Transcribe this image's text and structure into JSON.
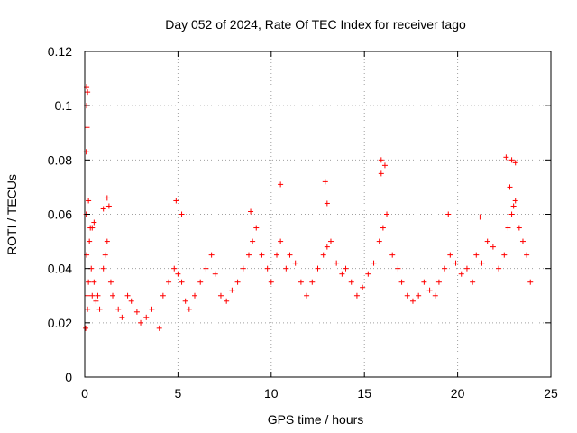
{
  "chart_data": {
    "type": "scatter",
    "title": "Day 052 of 2024, Rate Of TEC Index for receiver tago",
    "xlabel": "GPS time / hours",
    "ylabel": "ROTI / TECUs",
    "xlim": [
      0,
      25
    ],
    "ylim": [
      0,
      0.12
    ],
    "x_ticks": [
      0,
      5,
      10,
      15,
      20,
      25
    ],
    "x_tick_labels": [
      "0",
      "5",
      "10",
      "15",
      "20",
      "25"
    ],
    "y_ticks": [
      0,
      0.02,
      0.04,
      0.06,
      0.08,
      0.1,
      0.12
    ],
    "y_tick_labels": [
      "0",
      "0.02",
      "0.04",
      "0.06",
      "0.08",
      "0.1",
      "0.12"
    ],
    "grid": true,
    "marker": "+",
    "series": [
      {
        "name": "ROTI",
        "color": "#ff0000",
        "x": [
          0.05,
          0.08,
          0.1,
          0.12,
          0.15,
          0.2,
          0.25,
          0.3,
          0.35,
          0.4,
          0.5,
          0.6,
          0.7,
          0.8,
          1.0,
          1.1,
          1.2,
          1.4,
          1.5,
          1.8,
          2.0,
          2.3,
          2.5,
          2.8,
          3.0,
          3.3,
          3.6,
          4.0,
          4.2,
          4.5,
          4.8,
          5.0,
          5.2,
          5.4,
          5.6,
          5.9,
          6.2,
          6.5,
          6.8,
          7.0,
          7.3,
          7.6,
          7.9,
          8.2,
          8.5,
          8.8,
          9.0,
          9.2,
          9.5,
          9.8,
          10.0,
          10.3,
          10.5,
          10.8,
          11.0,
          11.3,
          11.6,
          11.9,
          12.2,
          12.5,
          12.8,
          13.0,
          13.2,
          13.5,
          13.8,
          14.0,
          14.3,
          14.6,
          14.9,
          15.2,
          15.5,
          15.8,
          16.0,
          16.2,
          16.5,
          16.8,
          17.0,
          17.3,
          17.6,
          17.9,
          18.2,
          18.5,
          18.8,
          19.0,
          19.3,
          19.6,
          19.9,
          20.2,
          20.5,
          20.8,
          21.0,
          21.3,
          21.6,
          21.9,
          22.2,
          22.5,
          22.7,
          22.9,
          23.1,
          23.3,
          23.5,
          23.7,
          23.9,
          0.1,
          0.15,
          0.1,
          0.12,
          0.08,
          0.2,
          0.5,
          0.4,
          1.2,
          1.3,
          1.0,
          4.9,
          5.2,
          8.9,
          10.5,
          12.9,
          13.0,
          15.9,
          16.1,
          15.9,
          22.6,
          22.9,
          23.1,
          22.8,
          19.5,
          21.2,
          23.0
        ],
        "y": [
          0.018,
          0.06,
          0.045,
          0.03,
          0.025,
          0.035,
          0.05,
          0.055,
          0.04,
          0.03,
          0.035,
          0.028,
          0.03,
          0.025,
          0.04,
          0.045,
          0.05,
          0.035,
          0.03,
          0.025,
          0.022,
          0.03,
          0.028,
          0.024,
          0.02,
          0.022,
          0.025,
          0.018,
          0.03,
          0.035,
          0.04,
          0.038,
          0.035,
          0.028,
          0.025,
          0.03,
          0.035,
          0.04,
          0.045,
          0.038,
          0.03,
          0.028,
          0.032,
          0.035,
          0.04,
          0.045,
          0.05,
          0.055,
          0.045,
          0.04,
          0.035,
          0.045,
          0.05,
          0.04,
          0.045,
          0.042,
          0.035,
          0.03,
          0.035,
          0.04,
          0.045,
          0.048,
          0.05,
          0.042,
          0.038,
          0.04,
          0.035,
          0.03,
          0.033,
          0.038,
          0.042,
          0.05,
          0.055,
          0.06,
          0.045,
          0.04,
          0.035,
          0.03,
          0.028,
          0.03,
          0.035,
          0.032,
          0.03,
          0.035,
          0.04,
          0.045,
          0.042,
          0.038,
          0.04,
          0.035,
          0.045,
          0.042,
          0.05,
          0.048,
          0.04,
          0.045,
          0.055,
          0.06,
          0.065,
          0.055,
          0.05,
          0.045,
          0.035,
          0.107,
          0.105,
          0.1,
          0.092,
          0.083,
          0.065,
          0.057,
          0.055,
          0.066,
          0.063,
          0.062,
          0.065,
          0.06,
          0.061,
          0.071,
          0.072,
          0.064,
          0.08,
          0.078,
          0.075,
          0.081,
          0.08,
          0.079,
          0.07,
          0.06,
          0.059,
          0.063
        ]
      }
    ]
  }
}
